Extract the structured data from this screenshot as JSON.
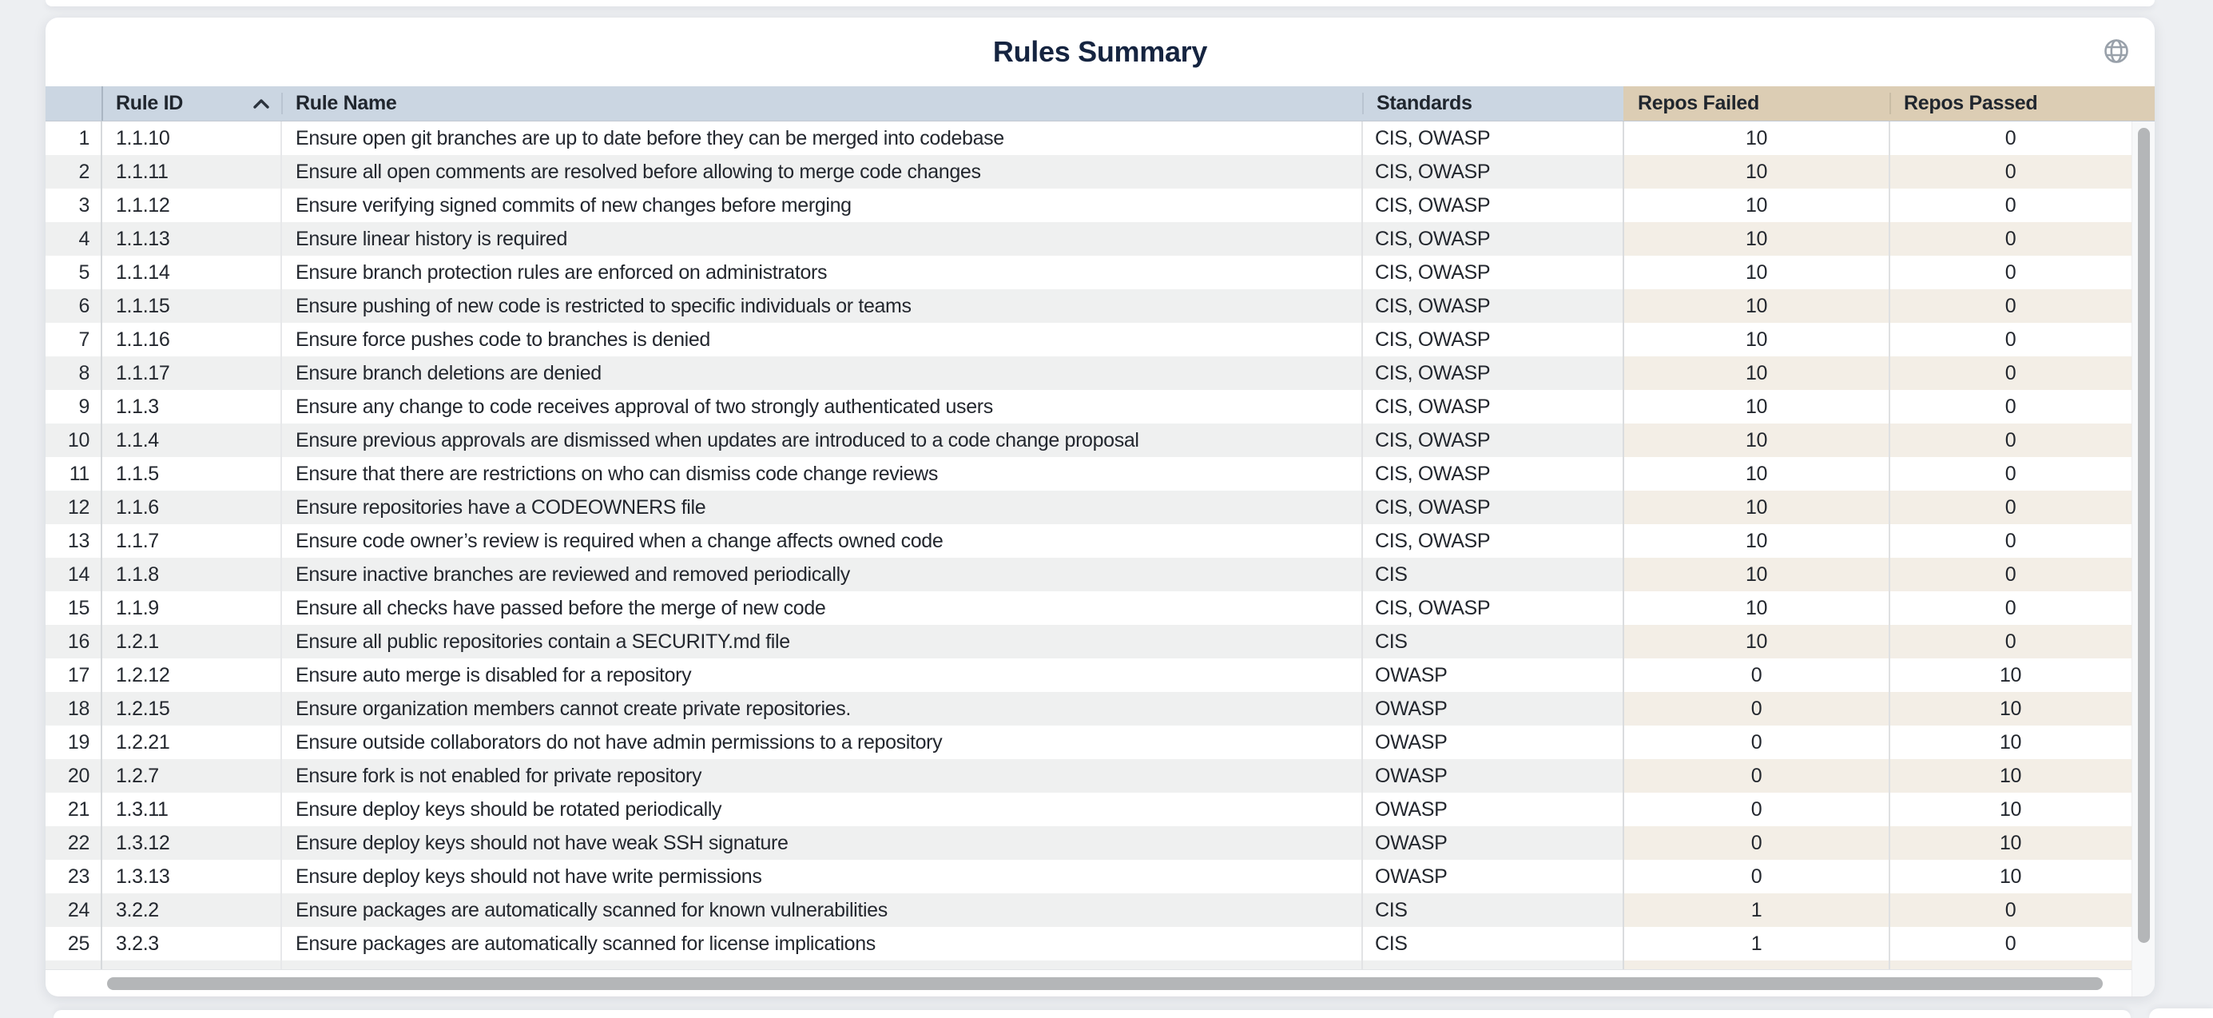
{
  "card": {
    "title": "Rules Summary"
  },
  "icons": {
    "globe": "globe-icon",
    "sort": "chevron-up-icon"
  },
  "table": {
    "columns": [
      {
        "id": "row-number",
        "label": "",
        "header_bg": "blue",
        "sorted": null
      },
      {
        "id": "rule-id",
        "label": "Rule ID",
        "header_bg": "blue",
        "sorted": "ascending"
      },
      {
        "id": "rule-name",
        "label": "Rule Name",
        "header_bg": "blue",
        "sorted": null
      },
      {
        "id": "standards",
        "label": "Standards",
        "header_bg": "blue",
        "sorted": null
      },
      {
        "id": "repos-failed",
        "label": "Repos Failed",
        "header_bg": "tan",
        "sorted": null
      },
      {
        "id": "repos-passed",
        "label": "Repos Passed",
        "header_bg": "tan",
        "sorted": null
      }
    ],
    "rows": [
      {
        "row": 1,
        "rule_id": "1.1.10",
        "rule_name": "Ensure open git branches are up to date before they can be merged into codebase",
        "standards": "CIS, OWASP",
        "repos_failed": 10,
        "repos_passed": 0
      },
      {
        "row": 2,
        "rule_id": "1.1.11",
        "rule_name": "Ensure all open comments are resolved before allowing to merge code changes",
        "standards": "CIS, OWASP",
        "repos_failed": 10,
        "repos_passed": 0
      },
      {
        "row": 3,
        "rule_id": "1.1.12",
        "rule_name": "Ensure verifying signed commits of new changes before merging",
        "standards": "CIS, OWASP",
        "repos_failed": 10,
        "repos_passed": 0
      },
      {
        "row": 4,
        "rule_id": "1.1.13",
        "rule_name": "Ensure linear history is required",
        "standards": "CIS, OWASP",
        "repos_failed": 10,
        "repos_passed": 0
      },
      {
        "row": 5,
        "rule_id": "1.1.14",
        "rule_name": "Ensure branch protection rules are enforced on administrators",
        "standards": "CIS, OWASP",
        "repos_failed": 10,
        "repos_passed": 0
      },
      {
        "row": 6,
        "rule_id": "1.1.15",
        "rule_name": "Ensure pushing of new code is restricted to specific individuals or teams",
        "standards": "CIS, OWASP",
        "repos_failed": 10,
        "repos_passed": 0
      },
      {
        "row": 7,
        "rule_id": "1.1.16",
        "rule_name": "Ensure force pushes code to branches is denied",
        "standards": "CIS, OWASP",
        "repos_failed": 10,
        "repos_passed": 0
      },
      {
        "row": 8,
        "rule_id": "1.1.17",
        "rule_name": "Ensure branch deletions are denied",
        "standards": "CIS, OWASP",
        "repos_failed": 10,
        "repos_passed": 0
      },
      {
        "row": 9,
        "rule_id": "1.1.3",
        "rule_name": "Ensure any change to code receives approval of two strongly authenticated users",
        "standards": "CIS, OWASP",
        "repos_failed": 10,
        "repos_passed": 0
      },
      {
        "row": 10,
        "rule_id": "1.1.4",
        "rule_name": "Ensure previous approvals are dismissed when updates are introduced to a code change proposal",
        "standards": "CIS, OWASP",
        "repos_failed": 10,
        "repos_passed": 0
      },
      {
        "row": 11,
        "rule_id": "1.1.5",
        "rule_name": "Ensure that there are restrictions on who can dismiss code change reviews",
        "standards": "CIS, OWASP",
        "repos_failed": 10,
        "repos_passed": 0
      },
      {
        "row": 12,
        "rule_id": "1.1.6",
        "rule_name": "Ensure repositories have a CODEOWNERS file",
        "standards": "CIS, OWASP",
        "repos_failed": 10,
        "repos_passed": 0
      },
      {
        "row": 13,
        "rule_id": "1.1.7",
        "rule_name": "Ensure code owner’s review is required when a change affects owned code",
        "standards": "CIS, OWASP",
        "repos_failed": 10,
        "repos_passed": 0
      },
      {
        "row": 14,
        "rule_id": "1.1.8",
        "rule_name": "Ensure inactive branches are reviewed and removed periodically",
        "standards": "CIS",
        "repos_failed": 10,
        "repos_passed": 0
      },
      {
        "row": 15,
        "rule_id": "1.1.9",
        "rule_name": "Ensure all checks have passed before the merge of new code",
        "standards": "CIS, OWASP",
        "repos_failed": 10,
        "repos_passed": 0
      },
      {
        "row": 16,
        "rule_id": "1.2.1",
        "rule_name": "Ensure all public repositories contain a SECURITY.md file",
        "standards": "CIS",
        "repos_failed": 10,
        "repos_passed": 0
      },
      {
        "row": 17,
        "rule_id": "1.2.12",
        "rule_name": "Ensure auto merge is disabled for a repository",
        "standards": "OWASP",
        "repos_failed": 0,
        "repos_passed": 10
      },
      {
        "row": 18,
        "rule_id": "1.2.15",
        "rule_name": "Ensure organization members cannot create private repositories.",
        "standards": "OWASP",
        "repos_failed": 0,
        "repos_passed": 10
      },
      {
        "row": 19,
        "rule_id": "1.2.21",
        "rule_name": "Ensure outside collaborators do not have admin permissions to a repository",
        "standards": "OWASP",
        "repos_failed": 0,
        "repos_passed": 10
      },
      {
        "row": 20,
        "rule_id": "1.2.7",
        "rule_name": "Ensure fork is not enabled for private repository",
        "standards": "OWASP",
        "repos_failed": 0,
        "repos_passed": 10
      },
      {
        "row": 21,
        "rule_id": "1.3.11",
        "rule_name": "Ensure deploy keys should be rotated periodically",
        "standards": "OWASP",
        "repos_failed": 0,
        "repos_passed": 10
      },
      {
        "row": 22,
        "rule_id": "1.3.12",
        "rule_name": "Ensure deploy keys should not have weak SSH signature",
        "standards": "OWASP",
        "repos_failed": 0,
        "repos_passed": 10
      },
      {
        "row": 23,
        "rule_id": "1.3.13",
        "rule_name": "Ensure deploy keys should not have write permissions",
        "standards": "OWASP",
        "repos_failed": 0,
        "repos_passed": 10
      },
      {
        "row": 24,
        "rule_id": "3.2.2",
        "rule_name": "Ensure packages are automatically scanned for known vulnerabilities",
        "standards": "CIS",
        "repos_failed": 1,
        "repos_passed": 0
      },
      {
        "row": 25,
        "rule_id": "3.2.3",
        "rule_name": "Ensure packages are automatically scanned for license implications",
        "standards": "CIS",
        "repos_failed": 1,
        "repos_passed": 0
      }
    ]
  },
  "scrollbars": {
    "vertical_visible": true,
    "horizontal_visible": true
  },
  "colors": {
    "page_background": "#edeff2",
    "card_background": "#ffffff",
    "header_blue": "#cbd6e2",
    "header_tan": "#dccdb4",
    "stripe_gray": "#eff0f0",
    "stripe_beige": "#f3eee6",
    "title_text": "#152440",
    "body_text": "#23272e",
    "scrollbar_thumb": "#b4b6b8"
  }
}
